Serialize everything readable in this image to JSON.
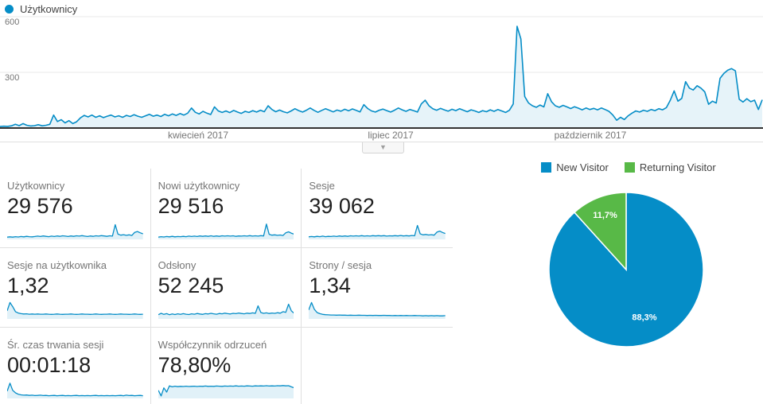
{
  "header_legend": {
    "label": "Użytkownicy",
    "dot_color": "#058dc7"
  },
  "collapse_button": {
    "glyph": "▼"
  },
  "chart_data": [
    {
      "id": "users_over_time",
      "type": "line",
      "title": "Użytkownicy",
      "grid": true,
      "ylim": [
        0,
        605
      ],
      "y_ticks": [
        "600",
        "300"
      ],
      "y_tick_values": [
        600,
        300
      ],
      "x_labels": [
        "kwiecień 2017",
        "lipiec 2017",
        "październik 2017"
      ],
      "line_color": "#058dc7",
      "fill_color": "rgba(5,141,199,0.10)",
      "series": [
        {
          "name": "Użytkownicy",
          "values": [
            8,
            10,
            9,
            12,
            20,
            13,
            24,
            15,
            11,
            13,
            18,
            12,
            15,
            20,
            70,
            35,
            45,
            28,
            40,
            24,
            34,
            55,
            68,
            60,
            70,
            58,
            66,
            56,
            64,
            70,
            60,
            66,
            58,
            68,
            62,
            72,
            64,
            58,
            66,
            74,
            64,
            70,
            62,
            74,
            66,
            76,
            68,
            78,
            70,
            80,
            108,
            85,
            76,
            90,
            80,
            73,
            114,
            92,
            84,
            92,
            83,
            95,
            86,
            79,
            90,
            84,
            94,
            86,
            96,
            88,
            120,
            100,
            88,
            97,
            88,
            82,
            92,
            104,
            94,
            86,
            96,
            108,
            95,
            85,
            95,
            104,
            96,
            87,
            97,
            91,
            101,
            93,
            103,
            95,
            87,
            126,
            105,
            92,
            86,
            96,
            102,
            94,
            86,
            96,
            108,
            98,
            90,
            100,
            94,
            86,
            130,
            150,
            120,
            104,
            96,
            106,
            98,
            91,
            101,
            94,
            104,
            96,
            88,
            98,
            92,
            84,
            94,
            88,
            98,
            90,
            100,
            92,
            84,
            96,
            130,
            548,
            480,
            170,
            135,
            120,
            112,
            124,
            114,
            185,
            142,
            120,
            112,
            122,
            114,
            105,
            115,
            107,
            98,
            108,
            100,
            106,
            98,
            108,
            100,
            90,
            70,
            42,
            58,
            46,
            66,
            80,
            92,
            86,
            96,
            90,
            100,
            94,
            104,
            98,
            110,
            150,
            200,
            145,
            160,
            250,
            215,
            205,
            228,
            215,
            195,
            128,
            145,
            135,
            268,
            295,
            312,
            320,
            308,
            155,
            140,
            158,
            142,
            150,
            100,
            152
          ]
        }
      ]
    },
    {
      "id": "visitor_type_pie",
      "type": "pie",
      "legend_position": "top",
      "slices": [
        {
          "label": "New Visitor",
          "value_pct": 88.3,
          "display": "88,3%",
          "color": "#058dc7"
        },
        {
          "label": "Returning Visitor",
          "value_pct": 11.7,
          "display": "11,7%",
          "color": "#58b947"
        }
      ]
    }
  ],
  "metrics": {
    "spark_color": "#058dc7",
    "cards": [
      {
        "label": "Użytkownicy",
        "value": "29 576",
        "spark": [
          0.1,
          0.12,
          0.1,
          0.13,
          0.11,
          0.14,
          0.12,
          0.15,
          0.13,
          0.12,
          0.14,
          0.16,
          0.14,
          0.17,
          0.15,
          0.13,
          0.16,
          0.14,
          0.17,
          0.15,
          0.18,
          0.16,
          0.14,
          0.17,
          0.15,
          0.18,
          0.16,
          0.19,
          0.16,
          0.14,
          0.17,
          0.15,
          0.18,
          0.16,
          0.19,
          0.17,
          0.15,
          0.18,
          0.16,
          0.85,
          0.28,
          0.22,
          0.25,
          0.21,
          0.24,
          0.2,
          0.38,
          0.44,
          0.36,
          0.3
        ]
      },
      {
        "label": "Nowi użytkownicy",
        "value": "29 516",
        "spark": [
          0.1,
          0.13,
          0.11,
          0.14,
          0.12,
          0.15,
          0.12,
          0.14,
          0.13,
          0.15,
          0.13,
          0.16,
          0.14,
          0.16,
          0.14,
          0.17,
          0.15,
          0.17,
          0.15,
          0.18,
          0.15,
          0.17,
          0.15,
          0.18,
          0.16,
          0.18,
          0.16,
          0.18,
          0.15,
          0.17,
          0.16,
          0.18,
          0.16,
          0.19,
          0.16,
          0.18,
          0.16,
          0.19,
          0.17,
          0.88,
          0.27,
          0.22,
          0.24,
          0.21,
          0.23,
          0.2,
          0.36,
          0.42,
          0.34,
          0.28
        ]
      },
      {
        "label": "Sesje",
        "value": "39 062",
        "spark": [
          0.12,
          0.14,
          0.12,
          0.15,
          0.13,
          0.16,
          0.13,
          0.15,
          0.14,
          0.16,
          0.14,
          0.17,
          0.15,
          0.17,
          0.15,
          0.18,
          0.16,
          0.18,
          0.16,
          0.19,
          0.16,
          0.18,
          0.16,
          0.19,
          0.17,
          0.19,
          0.17,
          0.19,
          0.16,
          0.18,
          0.17,
          0.19,
          0.17,
          0.2,
          0.17,
          0.19,
          0.17,
          0.2,
          0.18,
          0.8,
          0.3,
          0.24,
          0.26,
          0.23,
          0.25,
          0.22,
          0.4,
          0.46,
          0.38,
          0.32
        ]
      },
      {
        "label": "Sesje na użytkownika",
        "value": "1,32",
        "spark": [
          0.45,
          0.95,
          0.7,
          0.4,
          0.32,
          0.28,
          0.26,
          0.27,
          0.25,
          0.26,
          0.25,
          0.26,
          0.25,
          0.25,
          0.26,
          0.25,
          0.24,
          0.25,
          0.26,
          0.25,
          0.24,
          0.25,
          0.25,
          0.26,
          0.25,
          0.24,
          0.25,
          0.26,
          0.25,
          0.25,
          0.24,
          0.25,
          0.26,
          0.25,
          0.24,
          0.25,
          0.25,
          0.26,
          0.25,
          0.24,
          0.25,
          0.26,
          0.25,
          0.25,
          0.24,
          0.25,
          0.26,
          0.25,
          0.24,
          0.25
        ]
      },
      {
        "label": "Odsłony",
        "value": "52 245",
        "spark": [
          0.22,
          0.3,
          0.24,
          0.28,
          0.22,
          0.26,
          0.23,
          0.27,
          0.24,
          0.28,
          0.25,
          0.23,
          0.27,
          0.25,
          0.29,
          0.26,
          0.24,
          0.28,
          0.26,
          0.3,
          0.27,
          0.25,
          0.29,
          0.27,
          0.31,
          0.28,
          0.26,
          0.3,
          0.28,
          0.32,
          0.29,
          0.27,
          0.31,
          0.29,
          0.33,
          0.3,
          0.75,
          0.35,
          0.3,
          0.33,
          0.29,
          0.32,
          0.3,
          0.34,
          0.31,
          0.4,
          0.36,
          0.85,
          0.45,
          0.3
        ]
      },
      {
        "label": "Strony / sesja",
        "value": "1,34",
        "spark": [
          0.5,
          0.95,
          0.55,
          0.35,
          0.28,
          0.24,
          0.22,
          0.21,
          0.2,
          0.2,
          0.19,
          0.2,
          0.19,
          0.19,
          0.18,
          0.19,
          0.18,
          0.18,
          0.19,
          0.18,
          0.18,
          0.17,
          0.18,
          0.17,
          0.18,
          0.17,
          0.17,
          0.18,
          0.17,
          0.17,
          0.16,
          0.17,
          0.16,
          0.17,
          0.16,
          0.17,
          0.16,
          0.16,
          0.17,
          0.16,
          0.16,
          0.15,
          0.16,
          0.15,
          0.16,
          0.15,
          0.16,
          0.15,
          0.15,
          0.16
        ]
      },
      {
        "label": "Śr. czas trwania sesji",
        "value": "00:01:18",
        "spark": [
          0.4,
          0.88,
          0.45,
          0.3,
          0.22,
          0.18,
          0.16,
          0.17,
          0.15,
          0.16,
          0.14,
          0.15,
          0.16,
          0.14,
          0.15,
          0.13,
          0.14,
          0.15,
          0.13,
          0.14,
          0.15,
          0.13,
          0.14,
          0.13,
          0.14,
          0.15,
          0.13,
          0.14,
          0.13,
          0.14,
          0.13,
          0.14,
          0.15,
          0.13,
          0.14,
          0.13,
          0.14,
          0.13,
          0.14,
          0.13,
          0.14,
          0.15,
          0.13,
          0.16,
          0.14,
          0.15,
          0.13,
          0.14,
          0.15,
          0.13
        ]
      },
      {
        "label": "Współczynnik odrzuceń",
        "value": "78,80%",
        "spark": [
          0.45,
          0.12,
          0.6,
          0.35,
          0.72,
          0.66,
          0.7,
          0.67,
          0.69,
          0.68,
          0.7,
          0.68,
          0.69,
          0.7,
          0.68,
          0.7,
          0.69,
          0.71,
          0.69,
          0.7,
          0.69,
          0.71,
          0.7,
          0.69,
          0.71,
          0.7,
          0.71,
          0.7,
          0.72,
          0.7,
          0.71,
          0.7,
          0.72,
          0.71,
          0.7,
          0.72,
          0.71,
          0.72,
          0.71,
          0.73,
          0.71,
          0.72,
          0.71,
          0.73,
          0.72,
          0.74,
          0.72,
          0.73,
          0.66,
          0.6
        ]
      }
    ]
  }
}
